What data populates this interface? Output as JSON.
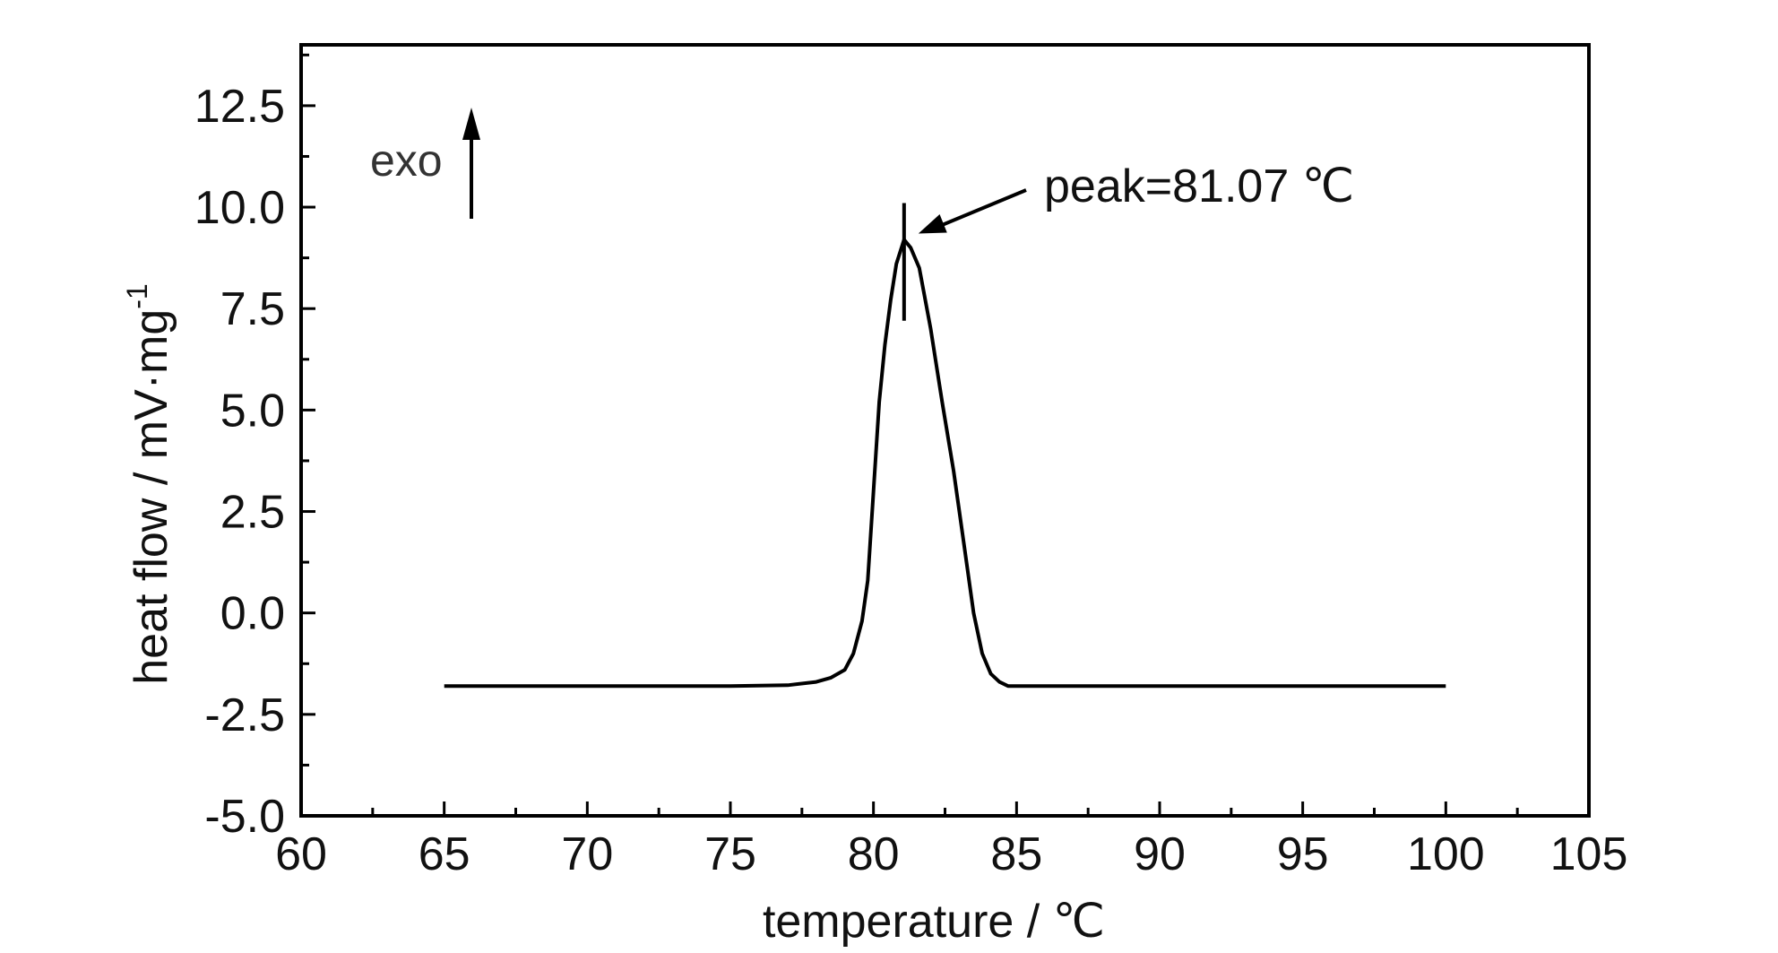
{
  "chart_data": {
    "type": "line",
    "xlabel": "temperature / ℃",
    "ylabel": "heat flow  / mV·mg",
    "ylabel_superscript": "-1",
    "xlim": [
      60,
      105
    ],
    "ylim": [
      -5.0,
      14.0
    ],
    "x_ticks": [
      "60",
      "65",
      "70",
      "75",
      "80",
      "85",
      "90",
      "95",
      "100",
      "105"
    ],
    "y_ticks": [
      "-5.0",
      "-2.5",
      "0.0",
      "2.5",
      "5.0",
      "7.5",
      "10.0",
      "12.5"
    ],
    "grid": false,
    "annotations": {
      "peak_label": "peak=81.07  ℃",
      "peak_x": 81.07,
      "exo_label": "exo"
    },
    "series": [
      {
        "x": [
          65,
          70,
          75,
          77,
          78,
          78.5,
          79,
          79.3,
          79.6,
          79.8,
          80,
          80.2,
          80.4,
          80.6,
          80.8,
          81.07,
          81.3,
          81.6,
          82,
          82.4,
          82.8,
          83.2,
          83.5,
          83.8,
          84.1,
          84.4,
          84.7,
          85,
          90,
          95,
          100
        ],
        "y": [
          -1.8,
          -1.8,
          -1.8,
          -1.78,
          -1.7,
          -1.6,
          -1.4,
          -1.0,
          -0.2,
          0.8,
          3.0,
          5.2,
          6.6,
          7.7,
          8.6,
          9.2,
          9.0,
          8.5,
          7.0,
          5.2,
          3.5,
          1.5,
          0.0,
          -1.0,
          -1.5,
          -1.7,
          -1.8,
          -1.8,
          -1.8,
          -1.8,
          -1.8
        ],
        "color": "#000000"
      }
    ]
  }
}
